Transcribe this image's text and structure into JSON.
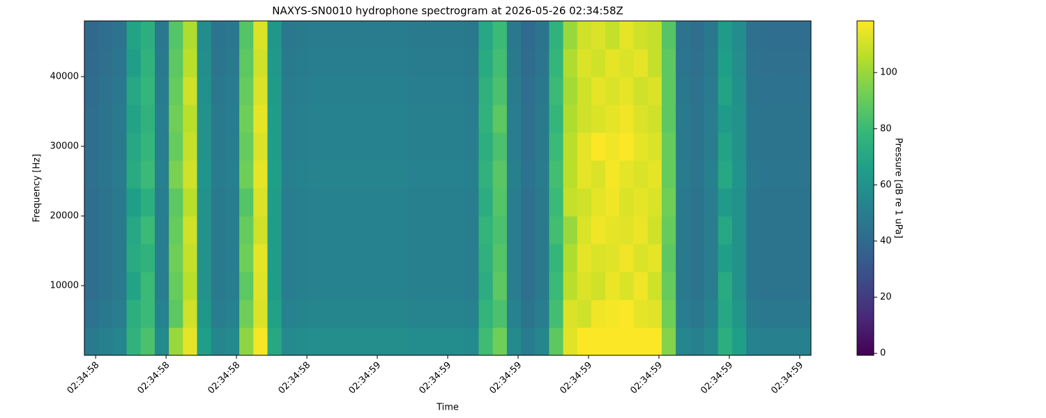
{
  "chart_data": {
    "type": "heatmap",
    "title": "NAXYS-SN0010 hydrophone spectrogram at 2026-05-26 02:34:58Z",
    "x_label": "Time",
    "y_label": "Frequency [Hz]",
    "colorbar_label": "Pressure [dB re 1 uPa]",
    "colormap": "viridis",
    "xlim": [
      58.584,
      59.616
    ],
    "xticks": [
      {
        "value": 58.6,
        "label": "02:34:58"
      },
      {
        "value": 58.7,
        "label": "02:34:58"
      },
      {
        "value": 58.8,
        "label": "02:34:58"
      },
      {
        "value": 58.9,
        "label": "02:34:58"
      },
      {
        "value": 59.0,
        "label": "02:34:59"
      },
      {
        "value": 59.1,
        "label": "02:34:59"
      },
      {
        "value": 59.2,
        "label": "02:34:59"
      },
      {
        "value": 59.3,
        "label": "02:34:59"
      },
      {
        "value": 59.4,
        "label": "02:34:59"
      },
      {
        "value": 59.5,
        "label": "02:34:59"
      },
      {
        "value": 59.6,
        "label": "02:34:59"
      }
    ],
    "ylim": [
      0,
      48000
    ],
    "yticks": [
      10000,
      20000,
      30000,
      40000
    ],
    "clim": [
      -0.7,
      118.4
    ],
    "cticks": [
      0,
      20,
      40,
      60,
      80,
      100
    ],
    "x": [
      58.594,
      58.614,
      58.634,
      58.654,
      58.674,
      58.694,
      58.714,
      58.734,
      58.754,
      58.774,
      58.794,
      58.814,
      58.834,
      58.854,
      58.874,
      58.894,
      58.914,
      58.934,
      58.954,
      58.974,
      58.994,
      59.014,
      59.034,
      59.054,
      59.074,
      59.094,
      59.114,
      59.134,
      59.154,
      59.174,
      59.194,
      59.214,
      59.234,
      59.254,
      59.274,
      59.294,
      59.314,
      59.334,
      59.354,
      59.374,
      59.394,
      59.414,
      59.434,
      59.454,
      59.474,
      59.494,
      59.514,
      59.534,
      59.554,
      59.574,
      59.594,
      59.614
    ],
    "y": [
      2000,
      6000,
      10000,
      14000,
      18000,
      22000,
      26000,
      30000,
      34000,
      38000,
      42000,
      46000
    ],
    "z": [
      [
        48,
        51,
        54,
        76,
        84,
        56,
        100,
        114,
        66,
        54,
        56,
        98,
        117,
        71,
        56,
        57,
        58,
        58,
        58,
        58,
        58,
        58,
        58,
        57,
        57,
        57,
        57,
        56,
        81,
        92,
        56,
        49,
        54,
        88,
        113,
        118,
        118,
        118,
        118,
        118,
        118,
        96,
        54,
        51,
        56,
        74,
        66,
        52,
        51,
        51,
        51,
        51
      ],
      [
        44,
        47,
        50,
        74,
        80,
        52,
        88,
        110,
        62,
        50,
        52,
        92,
        112,
        67,
        52,
        53,
        54,
        54,
        54,
        54,
        54,
        54,
        54,
        53,
        53,
        53,
        53,
        52,
        77,
        84,
        52,
        45,
        50,
        82,
        112,
        110,
        116,
        117,
        118,
        114,
        113,
        92,
        50,
        47,
        52,
        70,
        62,
        48,
        47,
        47,
        47,
        47
      ],
      [
        42,
        45,
        48,
        68,
        80,
        50,
        90,
        106,
        60,
        48,
        50,
        88,
        113,
        65,
        50,
        51,
        52,
        52,
        52,
        52,
        52,
        52,
        52,
        51,
        51,
        51,
        51,
        50,
        73,
        88,
        50,
        43,
        48,
        80,
        106,
        112,
        110,
        115,
        112,
        116,
        110,
        90,
        48,
        45,
        50,
        72,
        60,
        46,
        45,
        45,
        45,
        45
      ],
      [
        42,
        45,
        48,
        72,
        76,
        50,
        92,
        108,
        60,
        48,
        50,
        92,
        114,
        65,
        50,
        51,
        52,
        52,
        52,
        52,
        52,
        52,
        52,
        51,
        51,
        51,
        51,
        50,
        75,
        86,
        50,
        43,
        48,
        78,
        104,
        114,
        112,
        113,
        116,
        112,
        114,
        88,
        48,
        45,
        50,
        66,
        60,
        46,
        45,
        45,
        45,
        45
      ],
      [
        42,
        45,
        48,
        70,
        80,
        50,
        90,
        110,
        60,
        48,
        50,
        90,
        110,
        65,
        50,
        51,
        52,
        52,
        52,
        52,
        52,
        52,
        52,
        51,
        51,
        51,
        51,
        50,
        77,
        84,
        50,
        43,
        48,
        82,
        100,
        112,
        116,
        114,
        113,
        115,
        110,
        90,
        48,
        45,
        50,
        70,
        60,
        46,
        45,
        45,
        45,
        45
      ],
      [
        42,
        45,
        48,
        66,
        74,
        50,
        88,
        106,
        60,
        48,
        50,
        86,
        112,
        65,
        50,
        51,
        52,
        52,
        52,
        52,
        52,
        52,
        52,
        51,
        51,
        51,
        51,
        50,
        73,
        86,
        50,
        43,
        48,
        80,
        108,
        110,
        114,
        116,
        112,
        114,
        112,
        92,
        48,
        45,
        50,
        64,
        60,
        46,
        45,
        45,
        45,
        45
      ],
      [
        43,
        46,
        49,
        72,
        80,
        51,
        94,
        110,
        61,
        49,
        51,
        92,
        114,
        66,
        51,
        52,
        53,
        53,
        53,
        53,
        53,
        53,
        53,
        52,
        52,
        52,
        52,
        51,
        76,
        87,
        51,
        44,
        49,
        82,
        106,
        114,
        112,
        117,
        114,
        112,
        114,
        90,
        49,
        46,
        51,
        70,
        61,
        47,
        46,
        46,
        46,
        46
      ],
      [
        42,
        45,
        48,
        70,
        78,
        50,
        90,
        108,
        60,
        48,
        50,
        90,
        112,
        65,
        50,
        51,
        52,
        52,
        52,
        52,
        52,
        52,
        52,
        51,
        51,
        51,
        51,
        50,
        74,
        84,
        50,
        43,
        48,
        80,
        106,
        114,
        118,
        116,
        118,
        114,
        112,
        90,
        48,
        45,
        50,
        68,
        60,
        46,
        45,
        45,
        45,
        45
      ],
      [
        42,
        45,
        48,
        68,
        76,
        50,
        92,
        106,
        60,
        48,
        50,
        92,
        114,
        65,
        50,
        51,
        52,
        52,
        52,
        52,
        52,
        52,
        52,
        51,
        51,
        51,
        51,
        50,
        76,
        88,
        50,
        43,
        48,
        78,
        104,
        110,
        112,
        114,
        116,
        112,
        110,
        88,
        48,
        45,
        50,
        64,
        60,
        46,
        45,
        45,
        45,
        45
      ],
      [
        41,
        44,
        47,
        70,
        78,
        49,
        90,
        110,
        59,
        47,
        49,
        90,
        112,
        64,
        49,
        50,
        51,
        51,
        51,
        51,
        51,
        51,
        51,
        50,
        50,
        50,
        50,
        49,
        75,
        84,
        49,
        42,
        47,
        80,
        102,
        110,
        114,
        112,
        114,
        110,
        112,
        88,
        47,
        44,
        49,
        68,
        59,
        45,
        44,
        44,
        44,
        44
      ],
      [
        40,
        43,
        46,
        66,
        76,
        48,
        88,
        106,
        58,
        46,
        48,
        88,
        110,
        63,
        48,
        49,
        50,
        50,
        50,
        50,
        50,
        50,
        50,
        49,
        49,
        49,
        49,
        48,
        72,
        82,
        48,
        41,
        46,
        78,
        104,
        112,
        110,
        114,
        112,
        114,
        108,
        88,
        46,
        43,
        48,
        66,
        58,
        44,
        43,
        43,
        43,
        43
      ],
      [
        39,
        42,
        45,
        68,
        74,
        47,
        86,
        104,
        57,
        45,
        47,
        86,
        112,
        62,
        47,
        48,
        49,
        49,
        49,
        49,
        49,
        49,
        49,
        48,
        48,
        48,
        48,
        47,
        70,
        80,
        47,
        40,
        45,
        76,
        100,
        110,
        112,
        108,
        114,
        110,
        108,
        86,
        45,
        42,
        47,
        64,
        57,
        43,
        42,
        42,
        42,
        42
      ]
    ]
  }
}
